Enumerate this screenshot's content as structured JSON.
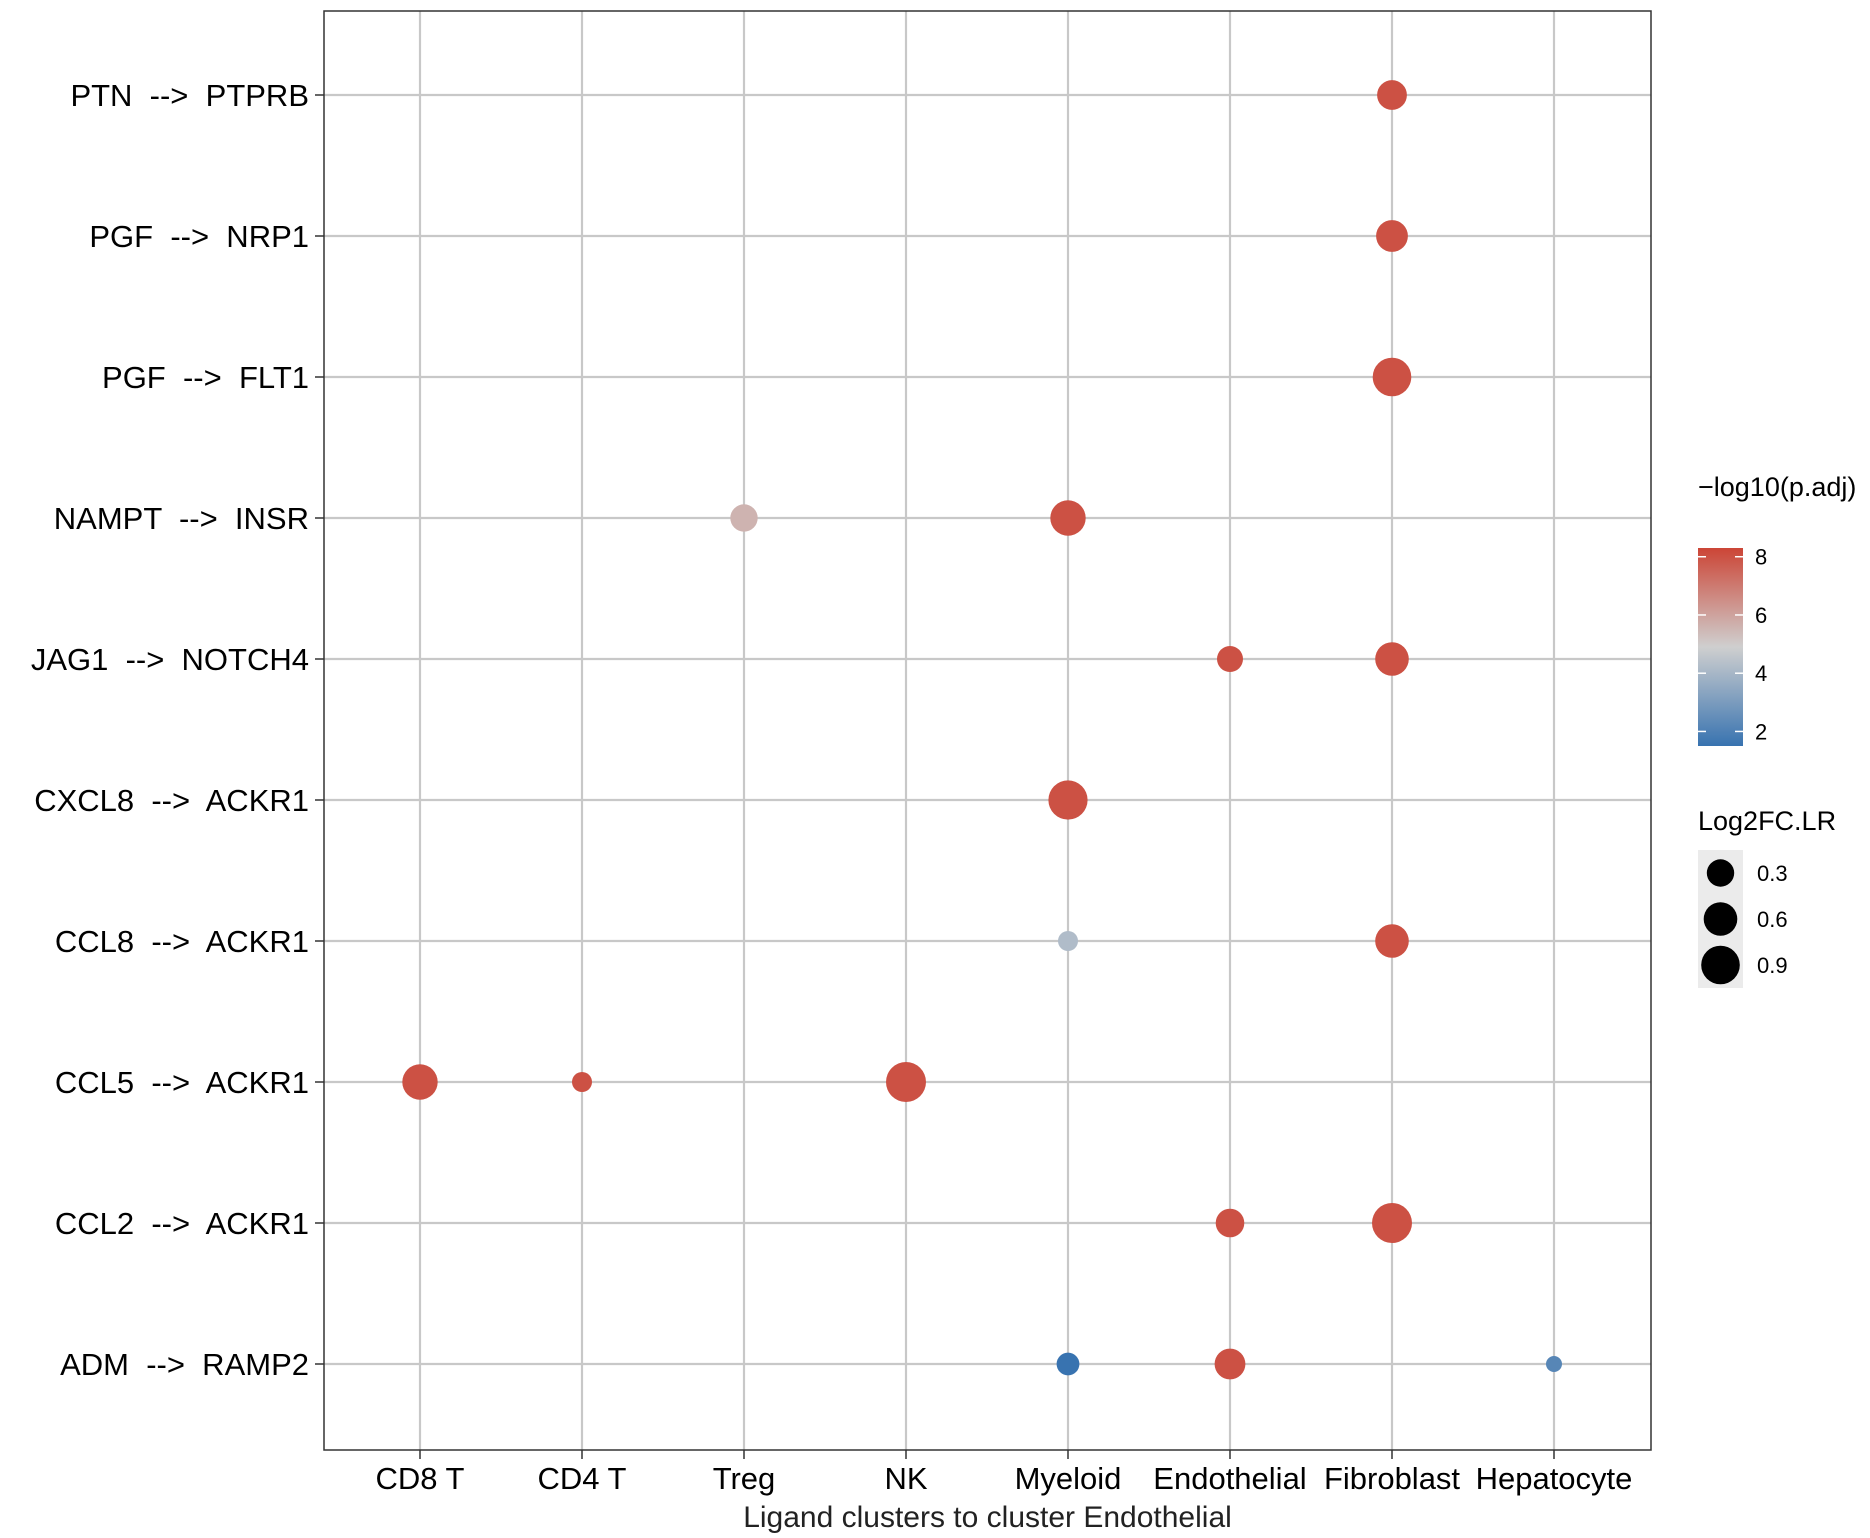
{
  "chart_data": {
    "type": "scatter",
    "xlabel": "Ligand clusters to cluster Endothelial",
    "ylabel": "",
    "categories_x": [
      "CD8 T",
      "CD4 T",
      "Treg",
      "NK",
      "Myeloid",
      "Endothelial",
      "Fibroblast",
      "Hepatocyte"
    ],
    "categories_y": [
      "ADM  -->  RAMP2",
      "CCL2  -->  ACKR1",
      "CCL5  -->  ACKR1",
      "CCL8  -->  ACKR1",
      "CXCL8  -->  ACKR1",
      "JAG1  -->  NOTCH4",
      "NAMPT  -->  INSR",
      "PGF  -->  FLT1",
      "PGF  -->  NRP1",
      "PTN  -->  PTPRB"
    ],
    "points": [
      {
        "x": "Fibroblast",
        "y": "PTN  -->  PTPRB",
        "log2fc": 0.4,
        "neglog10p": 8
      },
      {
        "x": "Fibroblast",
        "y": "PGF  -->  NRP1",
        "log2fc": 0.5,
        "neglog10p": 8
      },
      {
        "x": "Fibroblast",
        "y": "PGF  -->  FLT1",
        "log2fc": 0.9,
        "neglog10p": 8
      },
      {
        "x": "Treg",
        "y": "NAMPT  -->  INSR",
        "log2fc": 0.3,
        "neglog10p": 5.6
      },
      {
        "x": "Myeloid",
        "y": "NAMPT  -->  INSR",
        "log2fc": 0.7,
        "neglog10p": 8
      },
      {
        "x": "Endothelial",
        "y": "JAG1  -->  NOTCH4",
        "log2fc": 0.25,
        "neglog10p": 8
      },
      {
        "x": "Fibroblast",
        "y": "JAG1  -->  NOTCH4",
        "log2fc": 0.6,
        "neglog10p": 8
      },
      {
        "x": "Myeloid",
        "y": "CXCL8  -->  ACKR1",
        "log2fc": 0.95,
        "neglog10p": 8
      },
      {
        "x": "Myeloid",
        "y": "CCL8  -->  ACKR1",
        "log2fc": 0.08,
        "neglog10p": 4.2
      },
      {
        "x": "Fibroblast",
        "y": "CCL8  -->  ACKR1",
        "log2fc": 0.6,
        "neglog10p": 8
      },
      {
        "x": "CD8 T",
        "y": "CCL5  -->  ACKR1",
        "log2fc": 0.7,
        "neglog10p": 8
      },
      {
        "x": "CD4 T",
        "y": "CCL5  -->  ACKR1",
        "log2fc": 0.08,
        "neglog10p": 8
      },
      {
        "x": "NK",
        "y": "CCL5  -->  ACKR1",
        "log2fc": 1.0,
        "neglog10p": 8
      },
      {
        "x": "Endothelial",
        "y": "CCL2  -->  ACKR1",
        "log2fc": 0.35,
        "neglog10p": 8
      },
      {
        "x": "Fibroblast",
        "y": "CCL2  -->  ACKR1",
        "log2fc": 1.0,
        "neglog10p": 8
      },
      {
        "x": "Myeloid",
        "y": "ADM  -->  RAMP2",
        "log2fc": 0.15,
        "neglog10p": 1.5
      },
      {
        "x": "Endothelial",
        "y": "ADM  -->  RAMP2",
        "log2fc": 0.45,
        "neglog10p": 8
      },
      {
        "x": "Hepatocyte",
        "y": "ADM  -->  RAMP2",
        "log2fc": 0.02,
        "neglog10p": 2.2
      }
    ],
    "color_legend": {
      "title": "−log10(p.adj)",
      "ticks": [
        2,
        4,
        6,
        8
      ],
      "range": [
        1.5,
        8.3
      ],
      "low_color": "#3873b0",
      "mid_color": "#cfcfcf",
      "high_color": "#cc4536"
    },
    "size_legend": {
      "title": "Log2FC.LR",
      "values": [
        0.3,
        0.6,
        0.9
      ],
      "labels": [
        "0.3",
        "0.6",
        "0.9"
      ]
    },
    "grid": true,
    "legend_position": "right",
    "colors": {
      "panel_border": "#333333",
      "grid_line": "#c8c8c8",
      "legend_key_bg": "#ebebeb",
      "point_legend_fill": "#000000"
    }
  }
}
